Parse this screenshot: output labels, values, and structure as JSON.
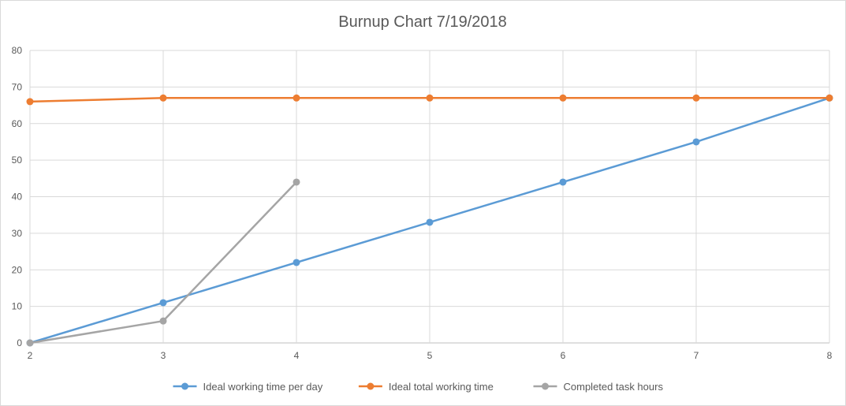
{
  "chart_data": {
    "type": "line",
    "title": "Burnup Chart 7/19/2018",
    "xlabel": "",
    "ylabel": "",
    "x": [
      2,
      3,
      4,
      5,
      6,
      7,
      8
    ],
    "xlim": [
      2,
      8
    ],
    "ylim": [
      0,
      80
    ],
    "yticks": [
      0,
      10,
      20,
      30,
      40,
      50,
      60,
      70,
      80
    ],
    "grid": true,
    "legend_position": "bottom",
    "series": [
      {
        "name": "Ideal working time per day",
        "color": "#5b9bd5",
        "values": [
          0,
          11,
          22,
          33,
          44,
          55,
          67
        ]
      },
      {
        "name": "Ideal total working time",
        "color": "#ed7d31",
        "values": [
          66,
          67,
          67,
          67,
          67,
          67,
          67
        ]
      },
      {
        "name": "Completed task hours",
        "color": "#a5a5a5",
        "values": [
          0,
          6,
          44,
          null,
          null,
          null,
          null
        ]
      }
    ]
  }
}
